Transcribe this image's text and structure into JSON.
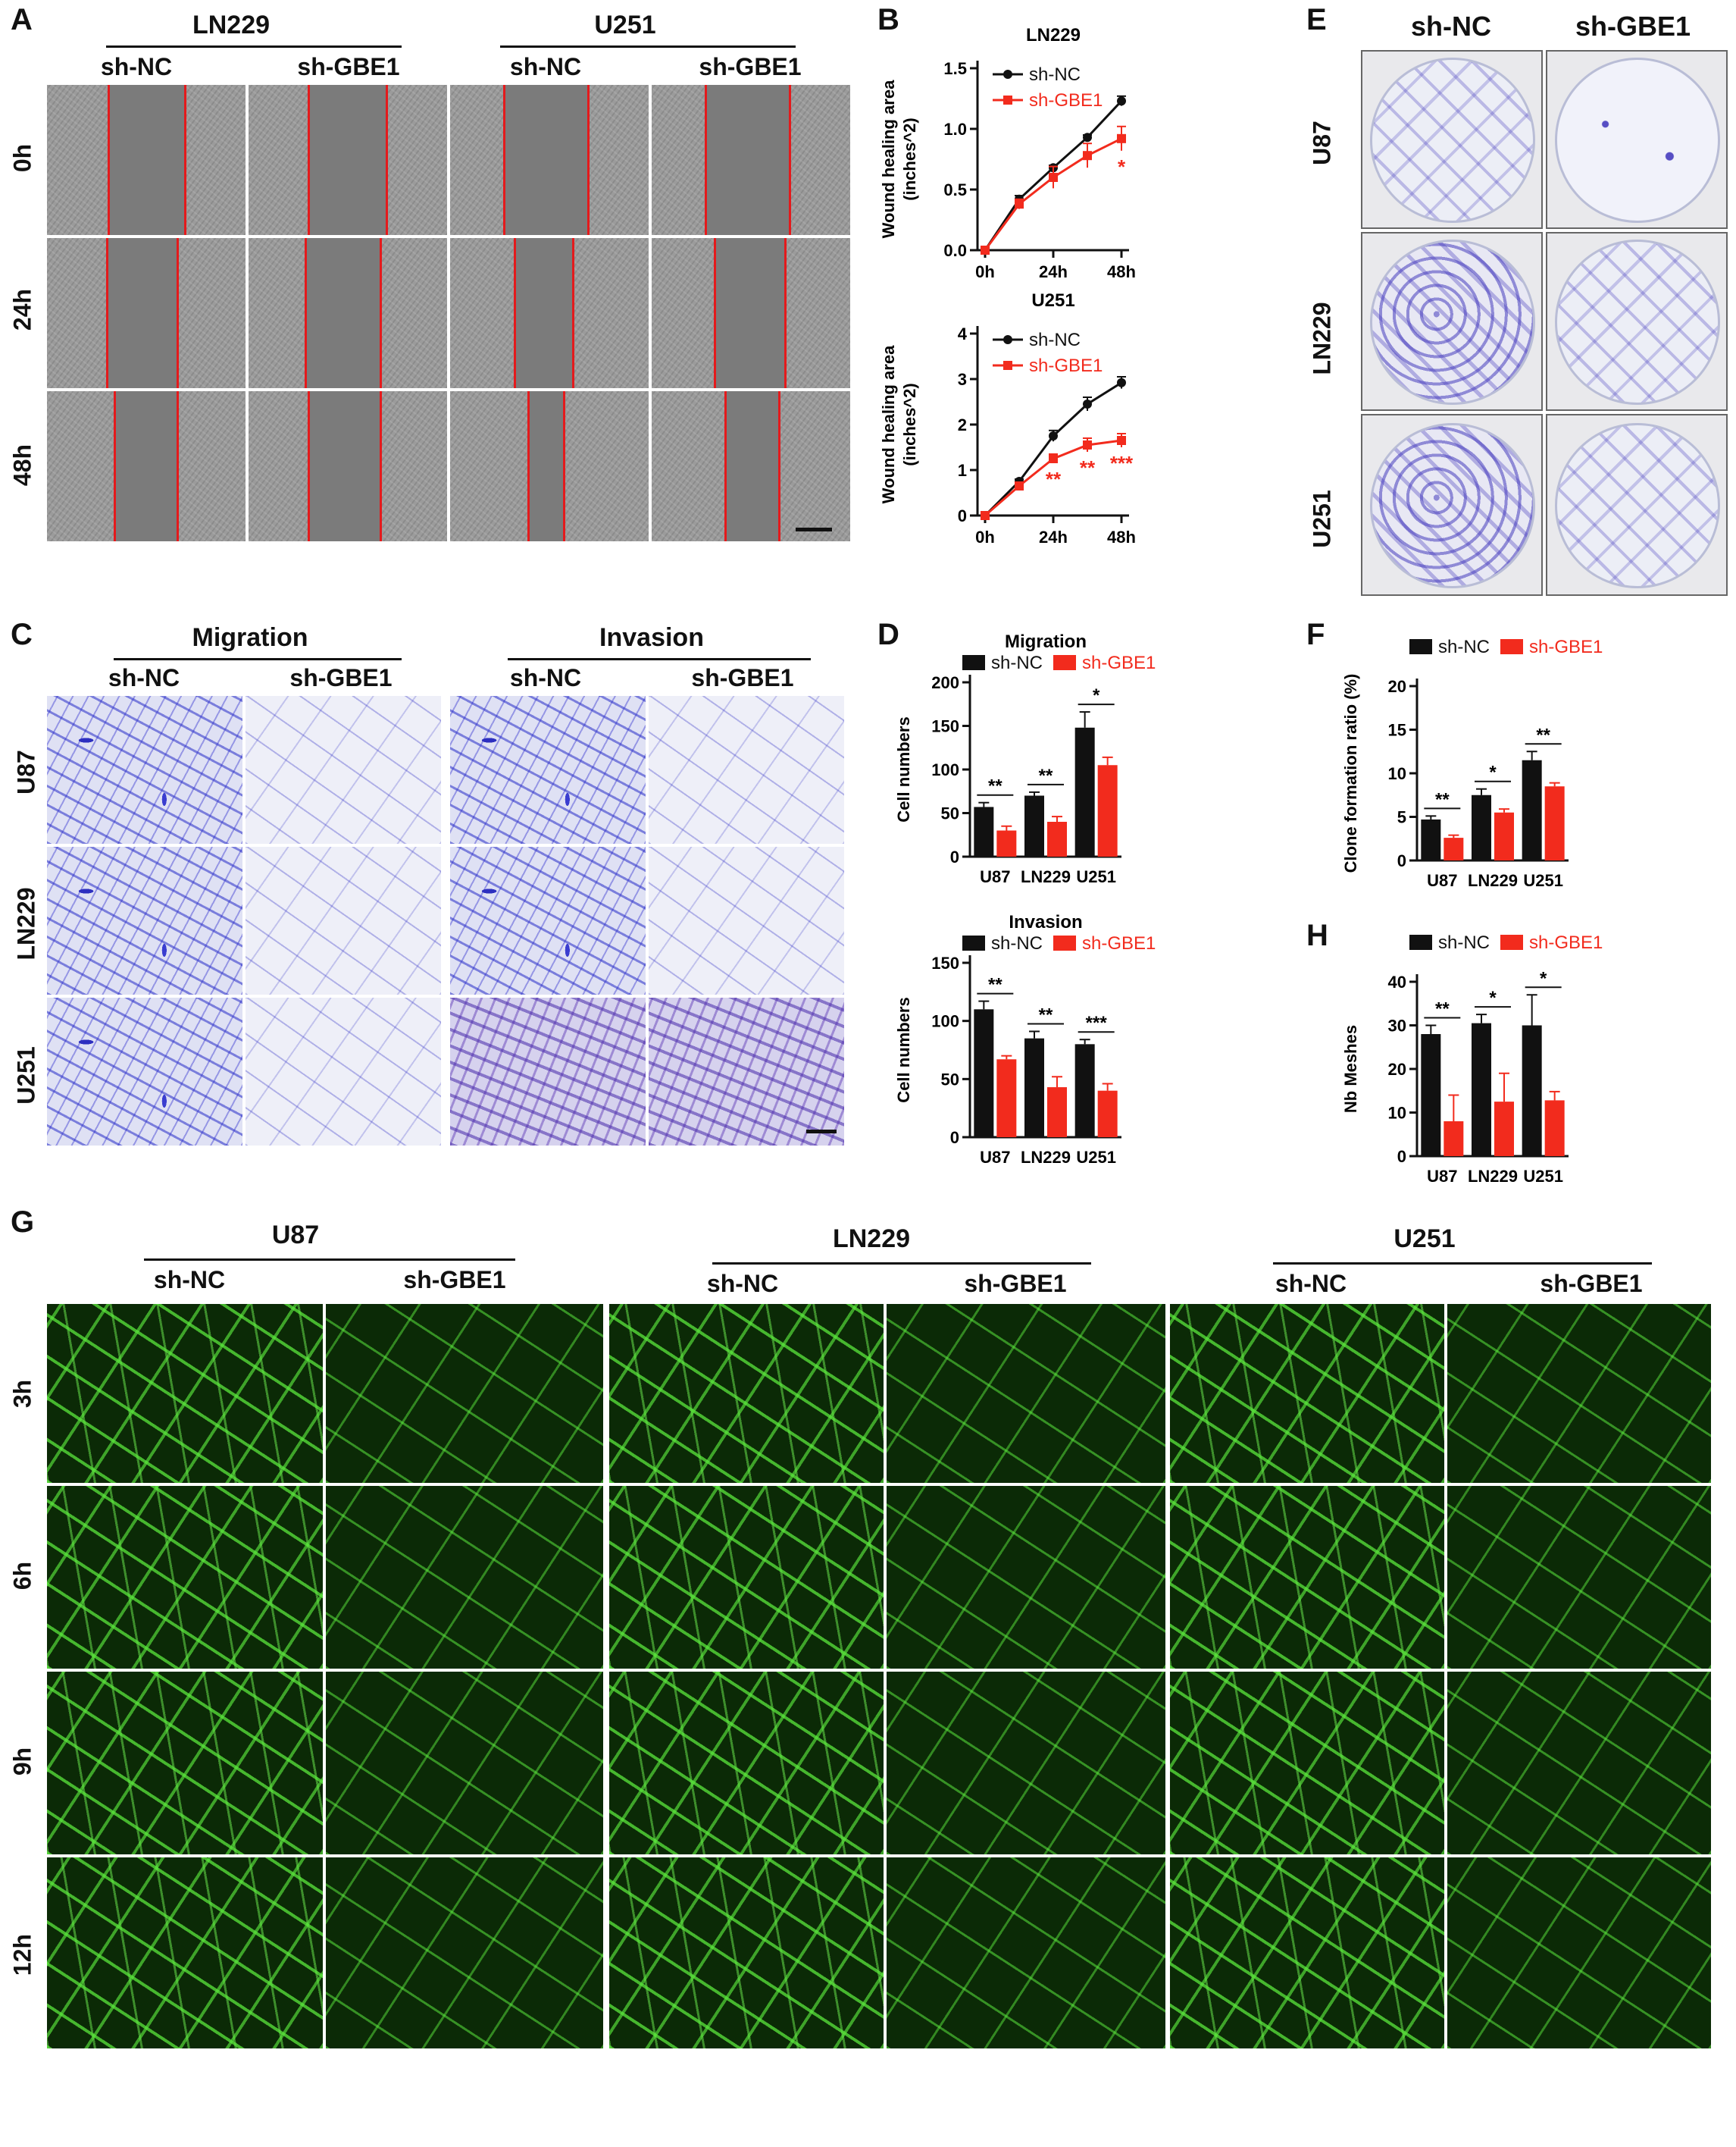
{
  "panel_letters": [
    "A",
    "B",
    "C",
    "D",
    "E",
    "F",
    "G",
    "H"
  ],
  "panelA": {
    "lines": [
      "LN229",
      "U251"
    ],
    "columns": [
      "sh-NC",
      "sh-GBE1",
      "sh-NC",
      "sh-GBE1"
    ],
    "rows": [
      "0h",
      "24h",
      "48h"
    ]
  },
  "panelC": {
    "assays": [
      "Migration",
      "Invasion"
    ],
    "columns": [
      "sh-NC",
      "sh-GBE1",
      "sh-NC",
      "sh-GBE1"
    ],
    "rows": [
      "U87",
      "LN229",
      "U251"
    ]
  },
  "panelE": {
    "columns": [
      "sh-NC",
      "sh-GBE1"
    ],
    "rows": [
      "U87",
      "LN229",
      "U251"
    ]
  },
  "panelG": {
    "lines": [
      "U87",
      "LN229",
      "U251"
    ],
    "columns": [
      "sh-NC",
      "sh-GBE1",
      "sh-NC",
      "sh-GBE1",
      "sh-NC",
      "sh-GBE1"
    ],
    "rows": [
      "3h",
      "6h",
      "9h",
      "12h"
    ]
  },
  "colors": {
    "shNC": "#111111",
    "shGBE1": "#f22b1d",
    "wound_outline": "#e41a1c"
  },
  "chart_data": [
    {
      "id": "B1",
      "type": "line",
      "title": "LN229",
      "ylabel": "Wound healing area (inches^2)",
      "xticks": [
        "0h",
        "24h",
        "48h"
      ],
      "yticks": [
        "0.0",
        "0.5",
        "1.0",
        "1.5"
      ],
      "ylim": [
        0,
        1.5
      ],
      "x": [
        0,
        12,
        24,
        36,
        48
      ],
      "series": [
        {
          "name": "sh-NC",
          "values": [
            0,
            0.42,
            0.68,
            0.93,
            1.23
          ],
          "err": [
            0,
            0.03,
            0.02,
            0.02,
            0.04
          ]
        },
        {
          "name": "sh-GBE1",
          "values": [
            0,
            0.38,
            0.6,
            0.78,
            0.92
          ],
          "err": [
            0,
            0.04,
            0.09,
            0.1,
            0.1
          ]
        }
      ],
      "annotations": [
        {
          "x": 48,
          "text": "*"
        }
      ],
      "legend": "top-left"
    },
    {
      "id": "B2",
      "type": "line",
      "title": "U251",
      "ylabel": "Wound healing area (inches^2)",
      "xticks": [
        "0h",
        "24h",
        "48h"
      ],
      "yticks": [
        "0",
        "1",
        "2",
        "3",
        "4"
      ],
      "ylim": [
        0,
        4
      ],
      "x": [
        0,
        12,
        24,
        36,
        48
      ],
      "series": [
        {
          "name": "sh-NC",
          "values": [
            0,
            0.75,
            1.75,
            2.45,
            2.92
          ],
          "err": [
            0,
            0.05,
            0.12,
            0.15,
            0.13
          ]
        },
        {
          "name": "sh-GBE1",
          "values": [
            0,
            0.65,
            1.25,
            1.55,
            1.65
          ],
          "err": [
            0,
            0.05,
            0.1,
            0.15,
            0.15
          ]
        }
      ],
      "annotations": [
        {
          "x": 24,
          "text": "**"
        },
        {
          "x": 36,
          "text": "**"
        },
        {
          "x": 48,
          "text": "***"
        }
      ],
      "legend": "top-left"
    },
    {
      "id": "D1",
      "type": "bar",
      "title": "Migration",
      "ylabel": "Cell numbers",
      "categories": [
        "U87",
        "LN229",
        "U251"
      ],
      "yticks": [
        "0",
        "50",
        "100",
        "150",
        "200"
      ],
      "ylim": [
        0,
        200
      ],
      "series": [
        {
          "name": "sh-NC",
          "values": [
            57,
            70,
            148
          ],
          "err": [
            5,
            4,
            18
          ]
        },
        {
          "name": "sh-GBE1",
          "values": [
            30,
            40,
            105
          ],
          "err": [
            5,
            6,
            9
          ]
        }
      ],
      "significance": [
        "**",
        "**",
        "*"
      ],
      "legend": "top"
    },
    {
      "id": "D2",
      "type": "bar",
      "title": "Invasion",
      "ylabel": "Cell numbers",
      "categories": [
        "U87",
        "LN229",
        "U251"
      ],
      "yticks": [
        "0",
        "50",
        "100",
        "150"
      ],
      "ylim": [
        0,
        150
      ],
      "series": [
        {
          "name": "sh-NC",
          "values": [
            110,
            85,
            80
          ],
          "err": [
            7,
            6,
            4
          ]
        },
        {
          "name": "sh-GBE1",
          "values": [
            67,
            43,
            40
          ],
          "err": [
            3,
            9,
            6
          ]
        }
      ],
      "significance": [
        "**",
        "**",
        "***"
      ],
      "legend": "top"
    },
    {
      "id": "F",
      "type": "bar",
      "title": "",
      "ylabel": "Clone formation ratio (%)",
      "categories": [
        "U87",
        "LN229",
        "U251"
      ],
      "yticks": [
        "0",
        "5",
        "10",
        "15",
        "20"
      ],
      "ylim": [
        0,
        20
      ],
      "series": [
        {
          "name": "sh-NC",
          "values": [
            4.7,
            7.5,
            11.5
          ],
          "err": [
            0.4,
            0.7,
            1.0
          ]
        },
        {
          "name": "sh-GBE1",
          "values": [
            2.6,
            5.5,
            8.5
          ],
          "err": [
            0.3,
            0.4,
            0.4
          ]
        }
      ],
      "significance": [
        "**",
        "*",
        "**"
      ],
      "legend": "top"
    },
    {
      "id": "H",
      "type": "bar",
      "title": "",
      "ylabel": "Nb Meshes",
      "categories": [
        "U87",
        "LN229",
        "U251"
      ],
      "yticks": [
        "0",
        "10",
        "20",
        "30",
        "40"
      ],
      "ylim": [
        0,
        40
      ],
      "series": [
        {
          "name": "sh-NC",
          "values": [
            28,
            30.5,
            30
          ],
          "err": [
            2,
            2,
            7
          ]
        },
        {
          "name": "sh-GBE1",
          "values": [
            8,
            12.5,
            12.8
          ],
          "err": [
            6,
            6.5,
            2
          ]
        }
      ],
      "significance": [
        "**",
        "*",
        "*"
      ],
      "legend": "top"
    }
  ]
}
